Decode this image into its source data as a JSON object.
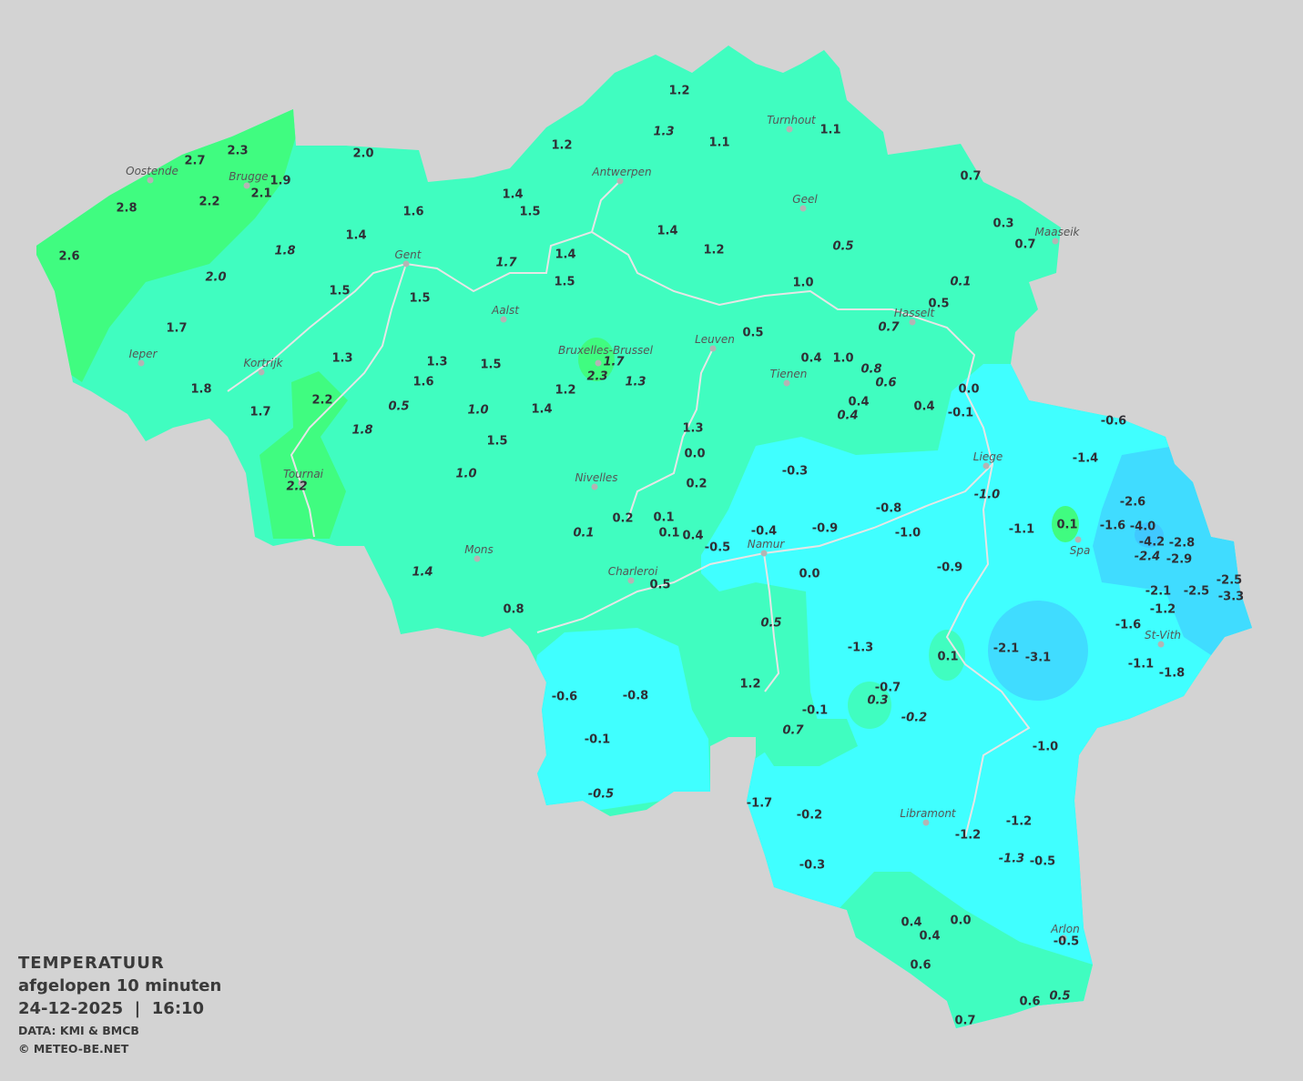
{
  "title": "TEMPERATUUR",
  "subtitle": "afgelopen 10 minuten",
  "datetime": "24-12-2025  |  16:10",
  "source": "DATA: KMI & BMCB",
  "copyright": "© METEO-BE.NET",
  "colors": {
    "background": "#d3d3d3",
    "band_above_2": "#40fc80",
    "band_0_to_2": "#40fdc0",
    "band_0_to_-2": "#40ffff",
    "band_-2_to_-4": "#40dcff",
    "band_below_-4": "#40c8ff",
    "rivers": "#e6e6e6"
  },
  "cities": [
    "Oostende",
    "Brugge",
    "Antwerpen",
    "Turnhout",
    "Geel",
    "Maaseik",
    "Gent",
    "Aalst",
    "Hasselt",
    "Leuven",
    "Bruxelles-Brussel",
    "Ieper",
    "Kortrijk",
    "Tienen",
    "Liege",
    "Tournai",
    "Nivelles",
    "Spa",
    "Namur",
    "Mons",
    "Charleroi",
    "St-Vith",
    "Libramont",
    "Arlon"
  ],
  "stations": [
    {
      "v": "1.2"
    },
    {
      "v": "1.3",
      "i": true
    },
    {
      "v": "1.1"
    },
    {
      "v": "1.1"
    },
    {
      "v": "1.2"
    },
    {
      "v": "2.3"
    },
    {
      "v": "2.7"
    },
    {
      "v": "2.0"
    },
    {
      "v": "1.9"
    },
    {
      "v": "2.1"
    },
    {
      "v": "2.2"
    },
    {
      "v": "2.8"
    },
    {
      "v": "2.6"
    },
    {
      "v": "1.4"
    },
    {
      "v": "1.5"
    },
    {
      "v": "1.6"
    },
    {
      "v": "1.4"
    },
    {
      "v": "1.8",
      "i": true
    },
    {
      "v": "1.4"
    },
    {
      "v": "1.2"
    },
    {
      "v": "0.5",
      "i": true
    },
    {
      "v": "0.7"
    },
    {
      "v": "0.3"
    },
    {
      "v": "0.7"
    },
    {
      "v": "1.4"
    },
    {
      "v": "1.7",
      "i": true
    },
    {
      "v": "1.5"
    },
    {
      "v": "2.0",
      "i": true
    },
    {
      "v": "1.5"
    },
    {
      "v": "1.5"
    },
    {
      "v": "1.0"
    },
    {
      "v": "0.1",
      "i": true
    },
    {
      "v": "0.5"
    },
    {
      "v": "0.7",
      "i": true
    },
    {
      "v": "1.7"
    },
    {
      "v": "0.5"
    },
    {
      "v": "1.3"
    },
    {
      "v": "1.3"
    },
    {
      "v": "1.5"
    },
    {
      "v": "1.7",
      "i": true
    },
    {
      "v": "2.3",
      "i": true
    },
    {
      "v": "1.3",
      "i": true
    },
    {
      "v": "0.4"
    },
    {
      "v": "1.0"
    },
    {
      "v": "0.8",
      "i": true
    },
    {
      "v": "0.6",
      "i": true
    },
    {
      "v": "1.6"
    },
    {
      "v": "1.2"
    },
    {
      "v": "1.8"
    },
    {
      "v": "2.2"
    },
    {
      "v": "0.5",
      "i": true
    },
    {
      "v": "1.0",
      "i": true
    },
    {
      "v": "1.4"
    },
    {
      "v": "0.4"
    },
    {
      "v": "0.4",
      "i": true
    },
    {
      "v": "0.4"
    },
    {
      "v": "0.0"
    },
    {
      "v": "-0.1"
    },
    {
      "v": "1.7"
    },
    {
      "v": "1.8",
      "i": true
    },
    {
      "v": "1.3"
    },
    {
      "v": "1.5"
    },
    {
      "v": "0.0"
    },
    {
      "v": "-0.6"
    },
    {
      "v": "-1.4"
    },
    {
      "v": "-0.3"
    },
    {
      "v": "1.0",
      "i": true
    },
    {
      "v": "0.2"
    },
    {
      "v": "2.2",
      "i": true
    },
    {
      "v": "-1.0",
      "i": true
    },
    {
      "v": "-2.6"
    },
    {
      "v": "-0.8"
    },
    {
      "v": "0.2"
    },
    {
      "v": "0.1"
    },
    {
      "v": "0.1"
    },
    {
      "v": "-1.1"
    },
    {
      "v": "-1.6"
    },
    {
      "v": "-4.0"
    },
    {
      "v": "-0.9"
    },
    {
      "v": "-1.0"
    },
    {
      "v": "-0.4"
    },
    {
      "v": "0.1"
    },
    {
      "v": "0.4"
    },
    {
      "v": "0.1",
      "i": true
    },
    {
      "v": "-4.2"
    },
    {
      "v": "-2.8"
    },
    {
      "v": "-0.5"
    },
    {
      "v": "-2.4",
      "i": true
    },
    {
      "v": "-2.9"
    },
    {
      "v": "1.4",
      "i": true
    },
    {
      "v": "0.0"
    },
    {
      "v": "-0.9"
    },
    {
      "v": "-2.5"
    },
    {
      "v": "-2.1"
    },
    {
      "v": "-2.5"
    },
    {
      "v": "-3.3"
    },
    {
      "v": "0.5"
    },
    {
      "v": "0.8"
    },
    {
      "v": "-1.2"
    },
    {
      "v": "0.5",
      "i": true
    },
    {
      "v": "-1.6"
    },
    {
      "v": "-1.3"
    },
    {
      "v": "-2.1"
    },
    {
      "v": "-3.1"
    },
    {
      "v": "0.1"
    },
    {
      "v": "-1.1"
    },
    {
      "v": "-1.8"
    },
    {
      "v": "1.2"
    },
    {
      "v": "-0.7"
    },
    {
      "v": "-0.6"
    },
    {
      "v": "-0.8"
    },
    {
      "v": "0.3",
      "i": true
    },
    {
      "v": "-0.1"
    },
    {
      "v": "-0.2",
      "i": true
    },
    {
      "v": "0.7",
      "i": true
    },
    {
      "v": "-0.1"
    },
    {
      "v": "-1.0"
    },
    {
      "v": "-0.5",
      "i": true
    },
    {
      "v": "-1.7"
    },
    {
      "v": "-0.2"
    },
    {
      "v": "-1.2"
    },
    {
      "v": "-1.2"
    },
    {
      "v": "-1.3",
      "i": true
    },
    {
      "v": "-0.5"
    },
    {
      "v": "-0.3"
    },
    {
      "v": "0.4"
    },
    {
      "v": "0.0"
    },
    {
      "v": "0.4"
    },
    {
      "v": "-0.5"
    },
    {
      "v": "0.6"
    },
    {
      "v": "0.6"
    },
    {
      "v": "0.5",
      "i": true
    },
    {
      "v": "0.7"
    }
  ]
}
